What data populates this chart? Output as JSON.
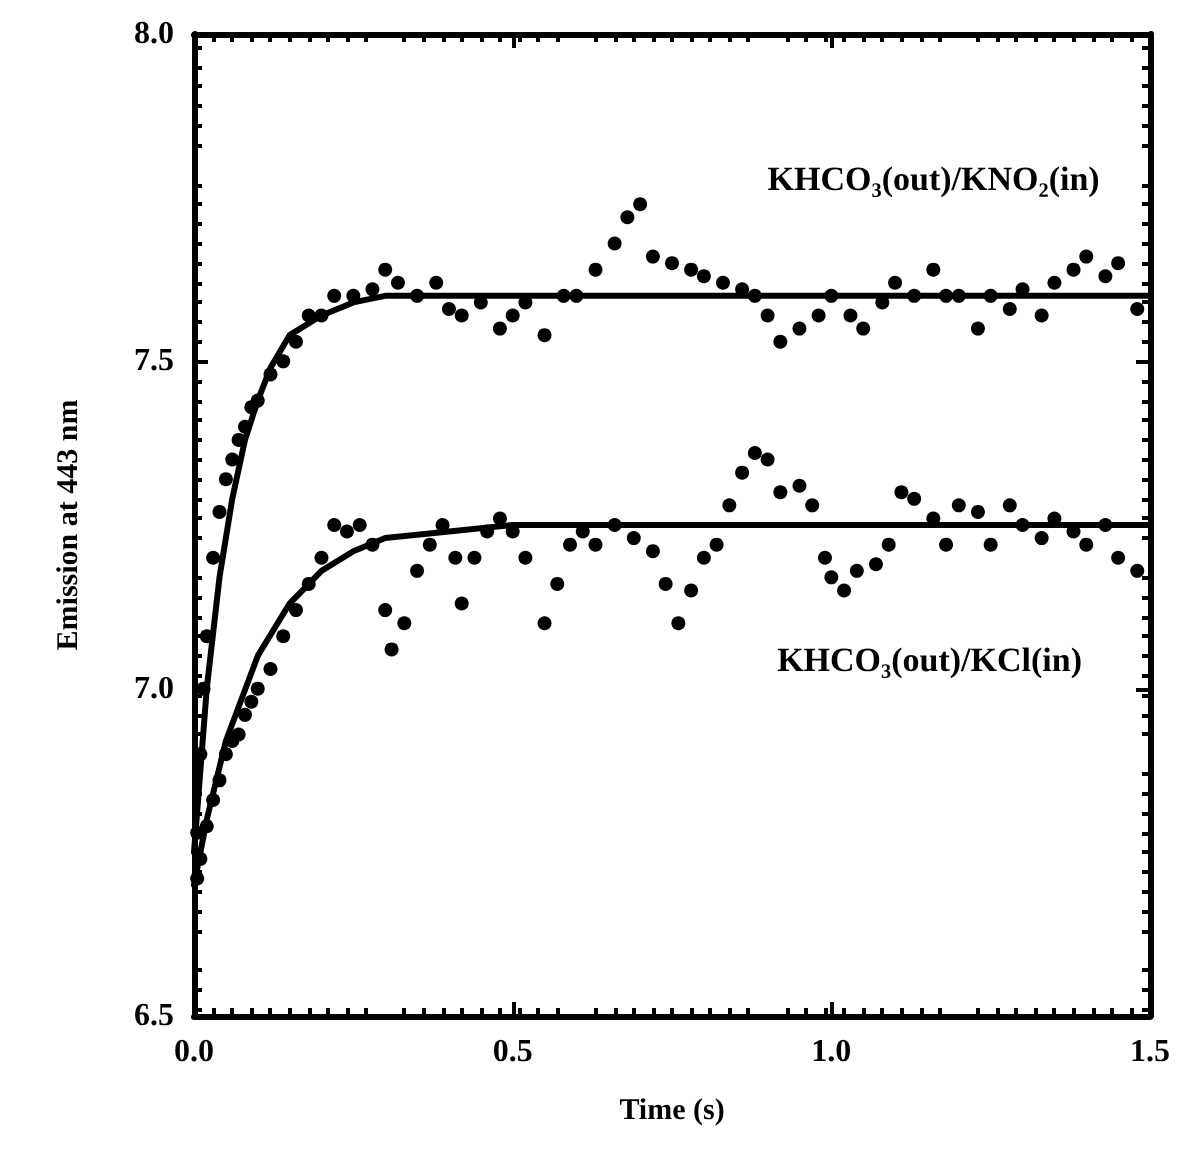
{
  "chart_data": {
    "type": "scatter",
    "xlabel": "Time (s)",
    "ylabel": "Emission at 443 nm",
    "xlim": [
      0,
      1.5
    ],
    "xticks": [
      {
        "value": 0,
        "label": "0.0"
      },
      0.5,
      {
        "value": 1,
        "label": "1.0"
      },
      1.5
    ],
    "ylim": [
      6.5,
      8
    ],
    "yticks": [
      6.5,
      {
        "value": 7,
        "label": "7.0"
      },
      7.5,
      {
        "value": 8,
        "label": "8.0"
      }
    ],
    "grid": false,
    "marker": "circle",
    "legend": "right",
    "series": [
      {
        "name": "KHCO₃(out)/KNO₂(in)",
        "color": "#000000",
        "x": [
          0.005,
          0.01,
          0.015,
          0.02,
          0.03,
          0.04,
          0.05,
          0.06,
          0.07,
          0.08,
          0.09,
          0.1,
          0.12,
          0.14,
          0.16,
          0.18,
          0.2,
          0.22,
          0.25,
          0.28,
          0.3,
          0.32,
          0.35,
          0.38,
          0.4,
          0.42,
          0.45,
          0.48,
          0.5,
          0.52,
          0.55,
          0.58,
          0.6,
          0.63,
          0.66,
          0.68,
          0.7,
          0.72,
          0.75,
          0.78,
          0.8,
          0.83,
          0.86,
          0.88,
          0.9,
          0.92,
          0.95,
          0.98,
          1.0,
          1.03,
          1.05,
          1.08,
          1.1,
          1.13,
          1.16,
          1.18,
          1.2,
          1.23,
          1.25,
          1.28,
          1.3,
          1.33,
          1.35,
          1.38,
          1.4,
          1.43,
          1.45,
          1.48
        ],
        "values": [
          6.78,
          6.9,
          7.0,
          7.08,
          7.2,
          7.27,
          7.32,
          7.35,
          7.38,
          7.4,
          7.43,
          7.44,
          7.48,
          7.5,
          7.53,
          7.57,
          7.57,
          7.6,
          7.6,
          7.61,
          7.64,
          7.62,
          7.6,
          7.62,
          7.58,
          7.57,
          7.59,
          7.55,
          7.57,
          7.59,
          7.54,
          7.6,
          7.6,
          7.64,
          7.68,
          7.72,
          7.74,
          7.66,
          7.65,
          7.64,
          7.63,
          7.62,
          7.61,
          7.6,
          7.57,
          7.53,
          7.55,
          7.57,
          7.6,
          7.57,
          7.55,
          7.59,
          7.62,
          7.6,
          7.64,
          7.6,
          7.6,
          7.55,
          7.6,
          7.58,
          7.61,
          7.57,
          7.62,
          7.64,
          7.66,
          7.63,
          7.65,
          7.58
        ]
      },
      {
        "name": "KHCO₃(out)/KCl(in)",
        "color": "#000000",
        "x": [
          0.005,
          0.01,
          0.02,
          0.03,
          0.04,
          0.05,
          0.06,
          0.07,
          0.08,
          0.09,
          0.1,
          0.12,
          0.14,
          0.16,
          0.18,
          0.2,
          0.22,
          0.24,
          0.26,
          0.28,
          0.3,
          0.31,
          0.33,
          0.35,
          0.37,
          0.39,
          0.41,
          0.42,
          0.44,
          0.46,
          0.48,
          0.5,
          0.52,
          0.55,
          0.57,
          0.59,
          0.61,
          0.63,
          0.66,
          0.69,
          0.72,
          0.74,
          0.76,
          0.78,
          0.8,
          0.82,
          0.84,
          0.86,
          0.88,
          0.9,
          0.92,
          0.95,
          0.97,
          0.99,
          1.0,
          1.02,
          1.04,
          1.07,
          1.09,
          1.11,
          1.13,
          1.16,
          1.18,
          1.2,
          1.23,
          1.25,
          1.28,
          1.3,
          1.33,
          1.35,
          1.38,
          1.4,
          1.43,
          1.45,
          1.48
        ],
        "values": [
          6.71,
          6.74,
          6.79,
          6.83,
          6.86,
          6.9,
          6.92,
          6.93,
          6.96,
          6.98,
          7.0,
          7.03,
          7.08,
          7.12,
          7.16,
          7.2,
          7.25,
          7.24,
          7.25,
          7.22,
          7.12,
          7.06,
          7.1,
          7.18,
          7.22,
          7.25,
          7.2,
          7.13,
          7.2,
          7.24,
          7.26,
          7.24,
          7.2,
          7.1,
          7.16,
          7.22,
          7.24,
          7.22,
          7.25,
          7.23,
          7.21,
          7.16,
          7.1,
          7.15,
          7.2,
          7.22,
          7.28,
          7.33,
          7.36,
          7.35,
          7.3,
          7.31,
          7.28,
          7.2,
          7.17,
          7.15,
          7.18,
          7.19,
          7.22,
          7.3,
          7.29,
          7.26,
          7.22,
          7.28,
          7.27,
          7.22,
          7.28,
          7.25,
          7.23,
          7.26,
          7.24,
          7.22,
          7.25,
          7.2,
          7.18
        ]
      },
      {
        "type": "line",
        "color": "#000000",
        "marker": "none",
        "x": [
          0,
          0.02,
          0.04,
          0.06,
          0.08,
          0.1,
          0.12,
          0.15,
          0.2,
          0.25,
          0.3,
          0.4,
          1.5
        ],
        "values": [
          6.75,
          7.0,
          7.17,
          7.29,
          7.38,
          7.44,
          7.49,
          7.54,
          7.57,
          7.59,
          7.6,
          7.6,
          7.6
        ]
      },
      {
        "type": "line",
        "color": "#000000",
        "marker": "none",
        "x": [
          0,
          0.02,
          0.05,
          0.1,
          0.15,
          0.2,
          0.25,
          0.3,
          0.4,
          0.5,
          1.5
        ],
        "values": [
          6.7,
          6.8,
          6.92,
          7.05,
          7.13,
          7.18,
          7.21,
          7.23,
          7.24,
          7.25,
          7.25
        ]
      }
    ]
  }
}
